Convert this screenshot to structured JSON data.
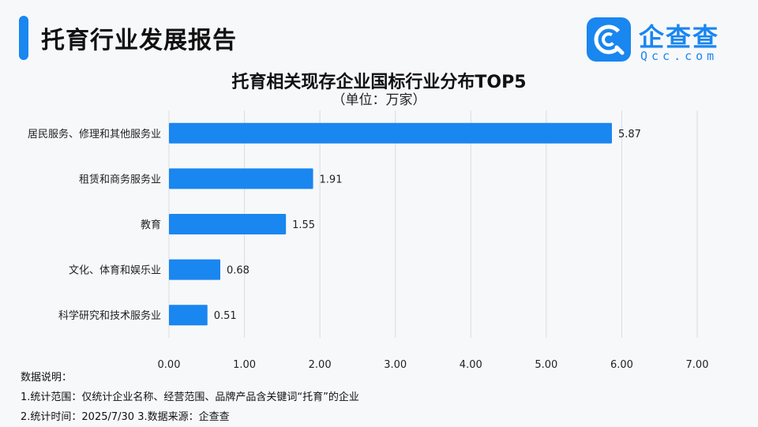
{
  "header": {
    "title": "托育行业发展报告"
  },
  "logo": {
    "name": "企查查",
    "domain": "Qcc.com"
  },
  "colors": {
    "accent": "#1a86f0",
    "bar": "#1a86f0",
    "grid": "#d8dde3"
  },
  "chart_data": {
    "type": "bar",
    "orientation": "horizontal",
    "title": "托育相关现存企业国标行业分布TOP5",
    "subtitle": "（单位：万家）",
    "categories": [
      "居民服务、修理和其他服务业",
      "租赁和商务服务业",
      "教育",
      "文化、体育和娱乐业",
      "科学研究和技术服务业"
    ],
    "values": [
      5.87,
      1.91,
      1.55,
      0.68,
      0.51
    ],
    "value_labels": [
      "5.87",
      "1.91",
      "1.55",
      "0.68",
      "0.51"
    ],
    "xlim": [
      0,
      7
    ],
    "xticks": [
      "0.00",
      "1.00",
      "2.00",
      "3.00",
      "4.00",
      "5.00",
      "6.00",
      "7.00"
    ],
    "grid": "vertical"
  },
  "notes": {
    "heading": "数据说明：",
    "line1": "1.统计范围：仅统计企业名称、经营范围、品牌产品含关键词“托育”的企业",
    "line2": " 2.统计时间：2025/7/30  3.数据来源：企查查"
  }
}
